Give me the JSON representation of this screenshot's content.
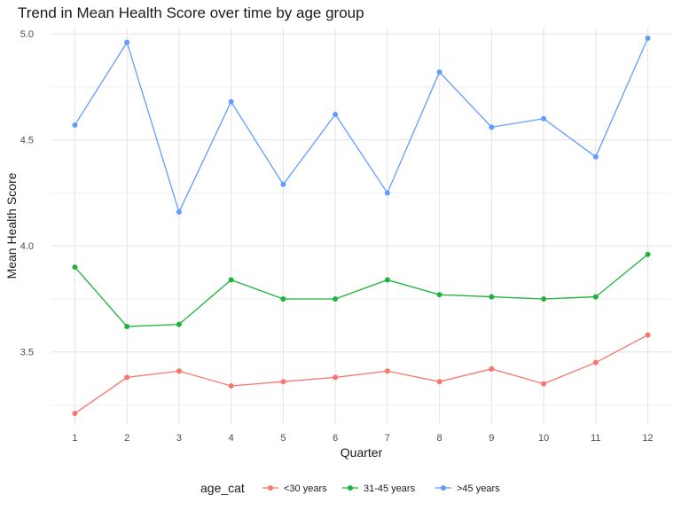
{
  "chart_data": {
    "type": "line",
    "title": "Trend in Mean Health Score over time by age group",
    "xlabel": "Quarter",
    "ylabel": "Mean Health Score",
    "x": [
      1,
      2,
      3,
      4,
      5,
      6,
      7,
      8,
      9,
      10,
      11,
      12
    ],
    "xticks": [
      "1",
      "2",
      "3",
      "4",
      "5",
      "6",
      "7",
      "8",
      "9",
      "10",
      "11",
      "12"
    ],
    "yticks": [
      "3.5",
      "4.0",
      "4.5",
      "5.0"
    ],
    "ytick_values": [
      3.5,
      4.0,
      4.5,
      5.0
    ],
    "ylim": [
      3.16,
      5.03
    ],
    "xlim": [
      0.55,
      12.45
    ],
    "grid": true,
    "legend_title": "age_cat",
    "legend_position": "bottom",
    "series": [
      {
        "name": "<30 years",
        "color": "#F8766D",
        "values": [
          3.21,
          3.38,
          3.41,
          3.34,
          3.36,
          3.38,
          3.41,
          3.36,
          3.42,
          3.35,
          3.45,
          3.58
        ]
      },
      {
        "name": "31-45 years",
        "color": "#1EB33A",
        "values": [
          3.9,
          3.62,
          3.63,
          3.84,
          3.75,
          3.75,
          3.84,
          3.77,
          3.76,
          3.75,
          3.76,
          3.96
        ]
      },
      {
        "name": ">45 years",
        "color": "#619CFF",
        "values": [
          4.57,
          4.96,
          4.16,
          4.68,
          4.29,
          4.62,
          4.25,
          4.82,
          4.56,
          4.6,
          4.42,
          4.98
        ]
      }
    ]
  }
}
